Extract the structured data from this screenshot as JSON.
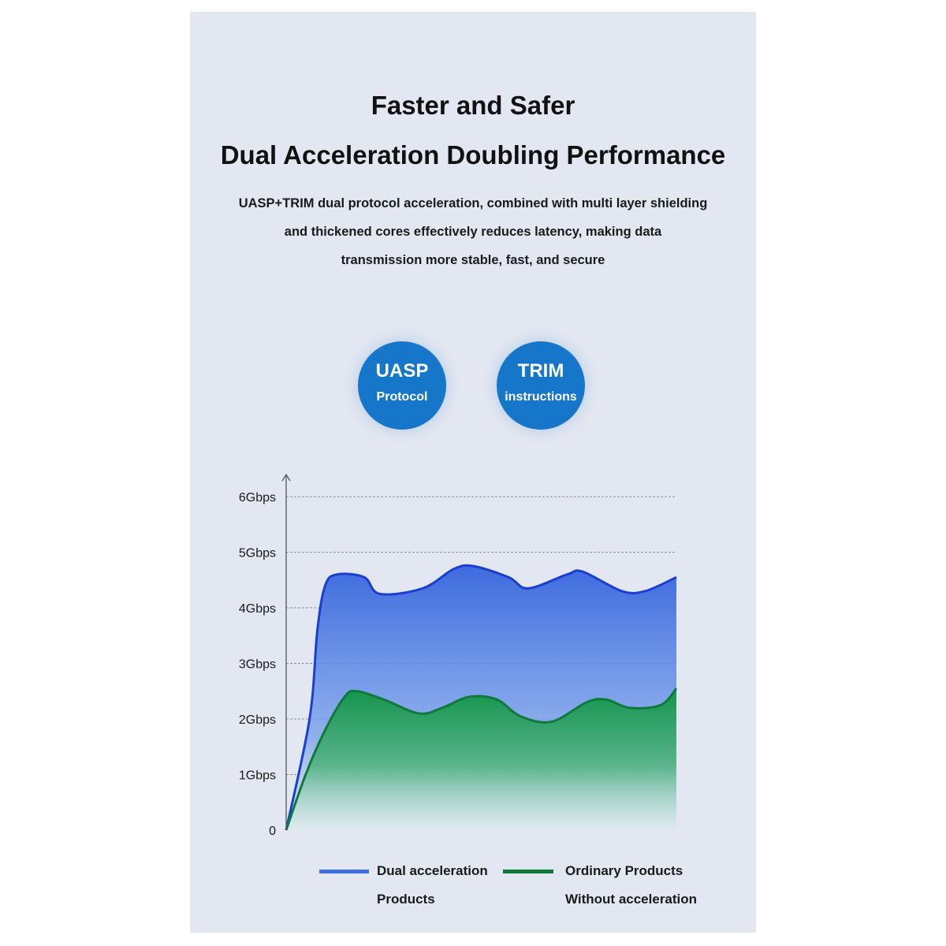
{
  "header": {
    "title_line1": "Faster and Safer",
    "title_line2": "Dual Acceleration Doubling Performance",
    "description_lines": [
      "UASP+TRIM dual protocol acceleration, combined with multi layer shielding",
      "and thickened cores effectively reduces latency, making data",
      "transmission more stable, fast, and secure"
    ]
  },
  "badges": [
    {
      "main": "UASP",
      "sub": "Protocol"
    },
    {
      "main": "TRIM",
      "sub": "instructions"
    }
  ],
  "colors": {
    "badge": "#1676c9",
    "dual_line": "#1a3fd0",
    "dual_fill": "#3d6fe0",
    "ordinary_line": "#0d7a3c",
    "ordinary_fill": "#1f9a52"
  },
  "chart_data": {
    "type": "area",
    "ytick_labels": [
      "0",
      "1Gbps",
      "2Gbps",
      "3Gbps",
      "4Gbps",
      "5Gbps",
      "6Gbps"
    ],
    "yticks": [
      0,
      1,
      2,
      3,
      4,
      5,
      6
    ],
    "ylim": [
      0,
      6.3
    ],
    "xlim": [
      0,
      100
    ],
    "grid": true,
    "legend_position": "bottom",
    "series": [
      {
        "name": "Dual acceleration Products",
        "legend_lines": [
          "Dual acceleration",
          "Products"
        ],
        "x": [
          0,
          6,
          8,
          10,
          13,
          20,
          24,
          35,
          43,
          48,
          57,
          62,
          72,
          76,
          86,
          92,
          100
        ],
        "y": [
          0,
          2.0,
          3.6,
          4.4,
          4.6,
          4.55,
          4.25,
          4.35,
          4.7,
          4.75,
          4.55,
          4.35,
          4.6,
          4.65,
          4.3,
          4.3,
          4.55
        ]
      },
      {
        "name": "Ordinary Products Without acceleration",
        "legend_lines": [
          "Ordinary Products",
          "Without acceleration"
        ],
        "x": [
          0,
          5,
          10,
          15,
          18,
          25,
          34,
          40,
          47,
          54,
          60,
          68,
          77,
          82,
          88,
          96,
          100
        ],
        "y": [
          0,
          1.0,
          1.8,
          2.4,
          2.5,
          2.35,
          2.1,
          2.2,
          2.4,
          2.35,
          2.05,
          1.95,
          2.3,
          2.35,
          2.2,
          2.25,
          2.55
        ]
      }
    ]
  }
}
